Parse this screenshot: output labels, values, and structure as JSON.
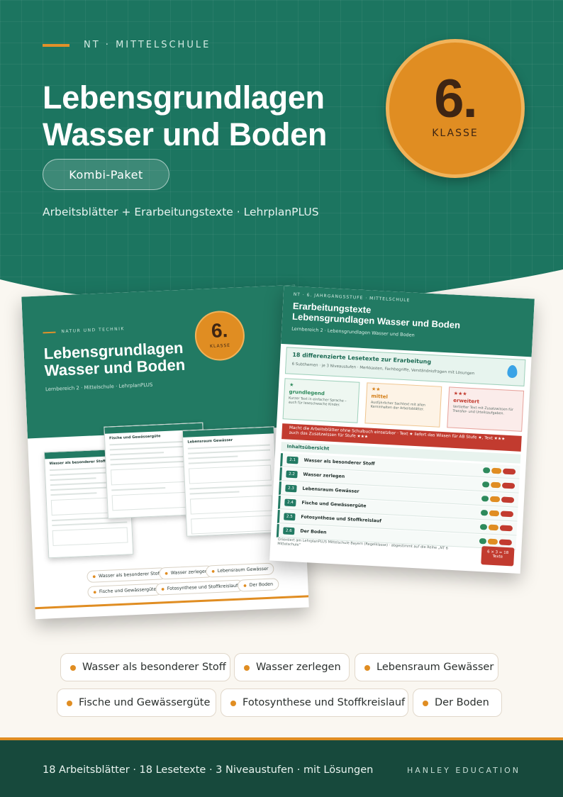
{
  "header": {
    "kicker": "NT · MITTELSCHULE",
    "title_line1": "Lebensgrundlagen",
    "title_line2": "Wasser und Boden",
    "pill": "Kombi-Paket",
    "subtitle": "Arbeitsblätter + Erarbeitungstexte · LehrplanPLUS"
  },
  "badge": {
    "number": "6.",
    "label": "KLASSE"
  },
  "colors": {
    "teal": "#1c7560",
    "orange": "#e08d22",
    "dark_green": "#17493c",
    "cream": "#faf7f1",
    "red": "#c23b2f"
  },
  "mock_left": {
    "kicker": "NATUR UND TECHNIK",
    "title_line1": "Lebensgrundlagen",
    "title_line2": "Wasser und Boden",
    "sub": "Lernbereich 2 · Mittelschule · LehrplanPLUS",
    "badge_number": "6.",
    "badge_label": "KLASSE",
    "sheets": [
      {
        "title": "Wasser als besonderer Stoff"
      },
      {
        "title": "Fische und Gewässergüte"
      },
      {
        "title": "Lebensraum Gewässer"
      }
    ],
    "chips": [
      "Wasser als besonderer Stoff",
      "Wasser zerlegen",
      "Lebensraum Gewässer",
      "Fische und Gewässergüte",
      "Fotosynthese und Stoffkreislauf",
      "Der Boden"
    ]
  },
  "mock_right": {
    "kicker": "NT · 6. JAHRGANGSSTUFE · MITTELSCHULE",
    "title_line1": "Erarbeitungstexte",
    "title_line2": "Lebensgrundlagen Wasser und Boden",
    "sub": "Lernbereich 2 · Lebensgrundlagen Wasser und Boden",
    "banner_title": "18 differenzierte Lesetexte zur Erarbeitung",
    "banner_text": "6 Subthemen · je 3 Niveaustufen · Merkkasten, Fachbegriffe, Verständnisfragen mit Lösungen",
    "levels": [
      {
        "stars": "★",
        "name": "grundlegend",
        "desc": "Kurzer Text in einfacher Sprache – auch für leseschwache Kinder.",
        "color": "#2e8a5c",
        "bg": "#eef7f1",
        "border": "#9fd0bb"
      },
      {
        "stars": "★★",
        "name": "mittel",
        "desc": "Ausführlicher Sachtext mit allen Kerninhalten der Arbeitsblätter.",
        "color": "#d47f19",
        "bg": "#fdf3e6",
        "border": "#efc58f"
      },
      {
        "stars": "★★★",
        "name": "erweitert",
        "desc": "Vertiefter Text mit Zusatzwissen für Transfer- und Urteilsaufgaben.",
        "color": "#c23b2f",
        "bg": "#fbecea",
        "border": "#e7a39c"
      }
    ],
    "red_banner": "Macht die Arbeitsblätter ohne Schulbuch einsetzbar · Text ★ liefert das Wissen für AB Stufe ★, Text ★★★ auch das Zusatzwissen für Stufe ★★★",
    "toc_title": "Inhaltsübersicht",
    "rows": [
      {
        "num": "2.1",
        "title": "Wasser als besonderer Stoff"
      },
      {
        "num": "2.2",
        "title": "Wasser zerlegen"
      },
      {
        "num": "2.3",
        "title": "Lebensraum Gewässer"
      },
      {
        "num": "2.4",
        "title": "Fische und Gewässergüte"
      },
      {
        "num": "2.5",
        "title": "Fotosynthese und Stoffkreislauf"
      },
      {
        "num": "2.6",
        "title": "Der Boden"
      }
    ],
    "footer": "Orientiert am LehrplanPLUS Mittelschule Bayern (Regelklasse) · abgestimmt auf die Reihe „NT 6 Mittelschule“",
    "tag_line1": "6 × 3 = 18",
    "tag_line2": "Texte"
  },
  "topics": [
    {
      "label": "Wasser als besonderer Stoff"
    },
    {
      "label": "Wasser zerlegen"
    },
    {
      "label": "Lebensraum Gewässer"
    },
    {
      "label": "Fische und Gewässergüte"
    },
    {
      "label": "Fotosynthese und Stoffkreislauf"
    },
    {
      "label": "Der Boden"
    }
  ],
  "footer": {
    "left": "18 Arbeitsblätter · 18 Lesetexte · 3 Niveaustufen · mit Lösungen",
    "right": "HANLEY EDUCATION"
  }
}
